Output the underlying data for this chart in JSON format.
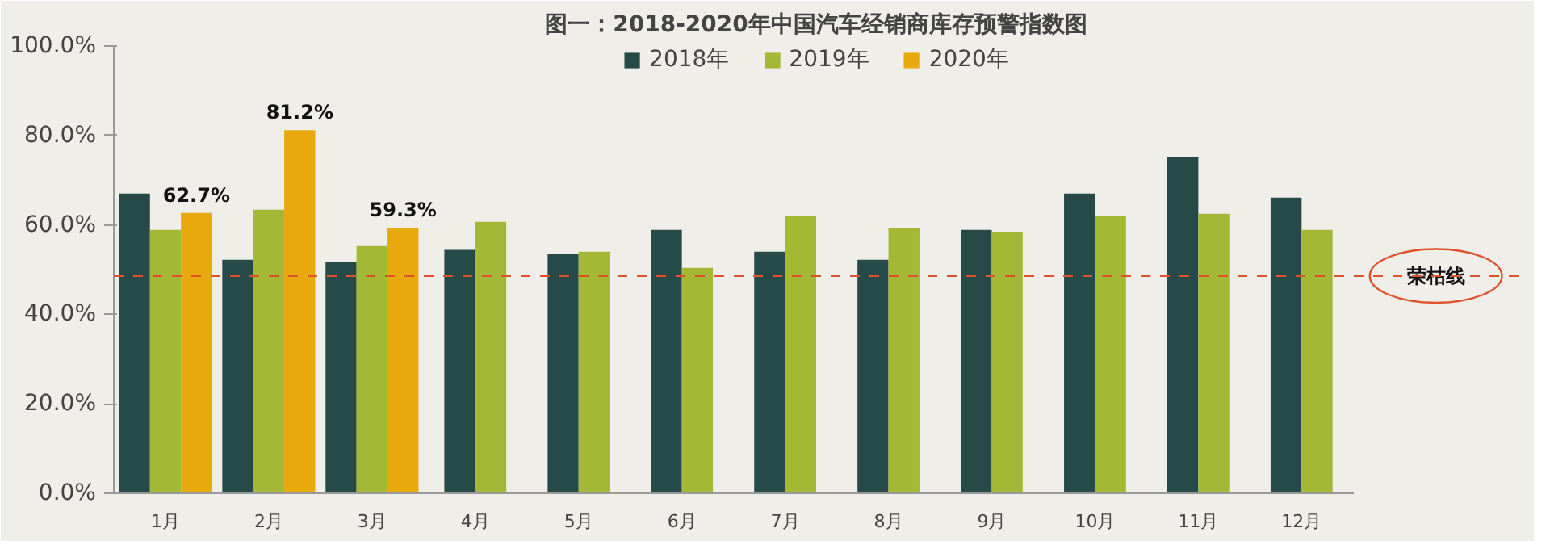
{
  "chart_data": {
    "type": "bar",
    "title": "图一：2018-2020年中国汽车经销商库存预警指数图",
    "categories": [
      "1月",
      "2月",
      "3月",
      "4月",
      "5月",
      "6月",
      "7月",
      "8月",
      "9月",
      "10月",
      "11月",
      "12月"
    ],
    "series": [
      {
        "name": "2018年",
        "color": "#264a48",
        "values": [
          67.0,
          52.2,
          51.7,
          54.4,
          53.5,
          58.9,
          54.0,
          52.2,
          58.9,
          67.0,
          75.1,
          66.1
        ]
      },
      {
        "name": "2019年",
        "color": "#a3b834",
        "values": [
          58.9,
          63.4,
          55.3,
          60.7,
          54.0,
          50.4,
          62.1,
          59.4,
          58.5,
          62.1,
          62.5,
          58.9
        ]
      },
      {
        "name": "2020年",
        "color": "#e8a90e",
        "values": [
          62.7,
          81.2,
          59.3,
          null,
          null,
          null,
          null,
          null,
          null,
          null,
          null,
          null
        ],
        "value_labels": [
          "62.7%",
          "81.2%",
          "59.3%",
          null,
          null,
          null,
          null,
          null,
          null,
          null,
          null,
          null
        ]
      }
    ],
    "ylim": [
      0,
      100
    ],
    "yticks": [
      {
        "value": 0,
        "label": "0.0%"
      },
      {
        "value": 20,
        "label": "20.0%"
      },
      {
        "value": 40,
        "label": "40.0%"
      },
      {
        "value": 60,
        "label": "60.0%"
      },
      {
        "value": 80,
        "label": "80.0%"
      },
      {
        "value": 100,
        "label": "100.0%"
      }
    ],
    "ref_lines": [
      {
        "axis": "y",
        "value": 48.6,
        "label": "荣枯线",
        "color": "#e0502a",
        "line_style": "dashed"
      }
    ],
    "grid": false,
    "legend": "top"
  }
}
